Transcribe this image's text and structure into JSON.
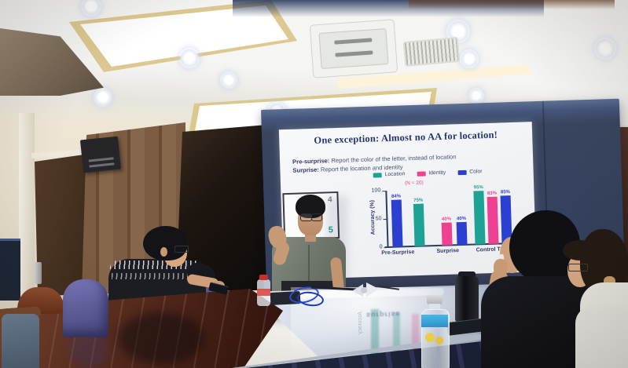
{
  "slide": {
    "title": "One exception: Almost no AA for location!",
    "instructions": [
      {
        "prefix": "Pre-surprise:",
        "text": " Report the color of the letter, instead of location"
      },
      {
        "prefix": "Surprise:",
        "text": " Report the location and identity"
      }
    ],
    "stimulus": {
      "digit_top": "4",
      "digit_bottom": "5"
    }
  },
  "chart_data": {
    "type": "bar",
    "title": "",
    "xlabel": "",
    "ylabel": "Accuracy (%)",
    "ylim": [
      0,
      100
    ],
    "yticks": [
      0,
      50,
      100
    ],
    "grid": false,
    "legend_position": "top",
    "note": "(N = 20)",
    "value_suffix": "%",
    "categories": [
      "Pre-Surprise",
      "Surprise",
      "Control Trials"
    ],
    "series": [
      {
        "name": "Location",
        "color": "#1ea294",
        "values": [
          null,
          75,
          95
        ]
      },
      {
        "name": "Identity",
        "color": "#ee4191",
        "values": [
          null,
          40,
          83
        ]
      },
      {
        "name": "Color",
        "color": "#2b3fd0",
        "values": [
          84,
          40,
          85
        ]
      }
    ]
  },
  "reflections": {
    "word": "surprise",
    "axis_word": "Accuracy"
  },
  "colors": {
    "screen_background": "#39455f",
    "slide_background": "#f4f5f7",
    "title_navy": "#22356e",
    "accent_teal": "#1ea294",
    "accent_pink": "#ee4191",
    "accent_blue": "#2b3fd0"
  }
}
